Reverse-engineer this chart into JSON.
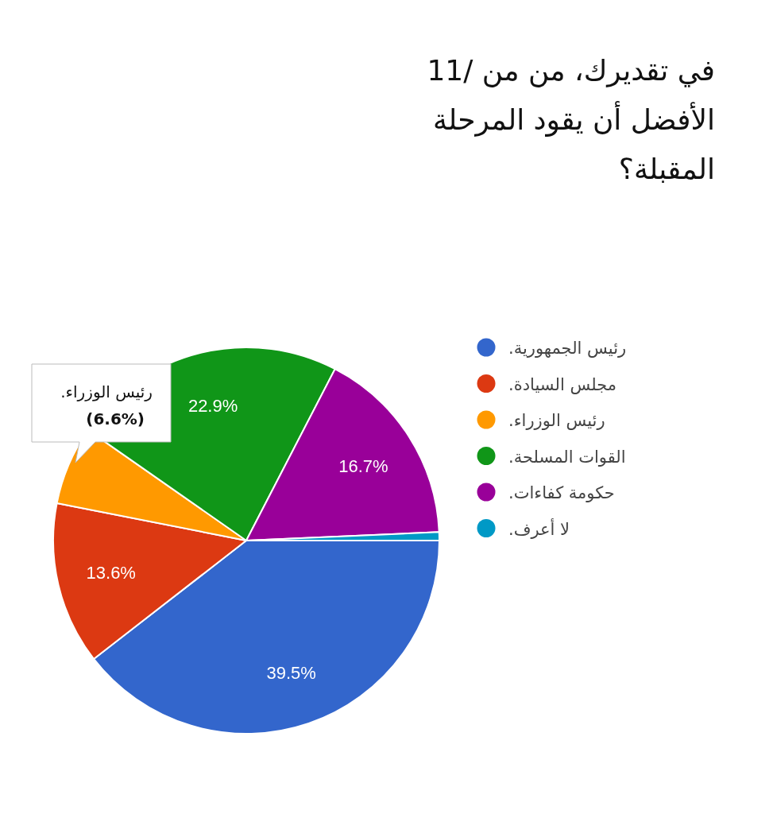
{
  "chart_data": {
    "type": "pie",
    "title": "11/ في تقديرك، من من الأفضل أن يقود المرحلة المقبلة؟",
    "categories": [
      "رئيس الجمهورية.",
      "مجلس السيادة.",
      "رئيس الوزراء.",
      "القوات المسلحة.",
      "حكومة كفاءات.",
      "لا أعرف."
    ],
    "values": [
      39.5,
      13.6,
      6.6,
      22.9,
      16.7,
      0.7
    ],
    "colors": [
      "#3366cc",
      "#dc3912",
      "#ff9900",
      "#109618",
      "#990099",
      "#0099c6"
    ],
    "value_labels": [
      "39.5%",
      "13.6%",
      null,
      "22.9%",
      "16.7%",
      null
    ],
    "legend": "right",
    "annotations": [
      "رئيس الوزراء.",
      "(6.6%)"
    ]
  }
}
